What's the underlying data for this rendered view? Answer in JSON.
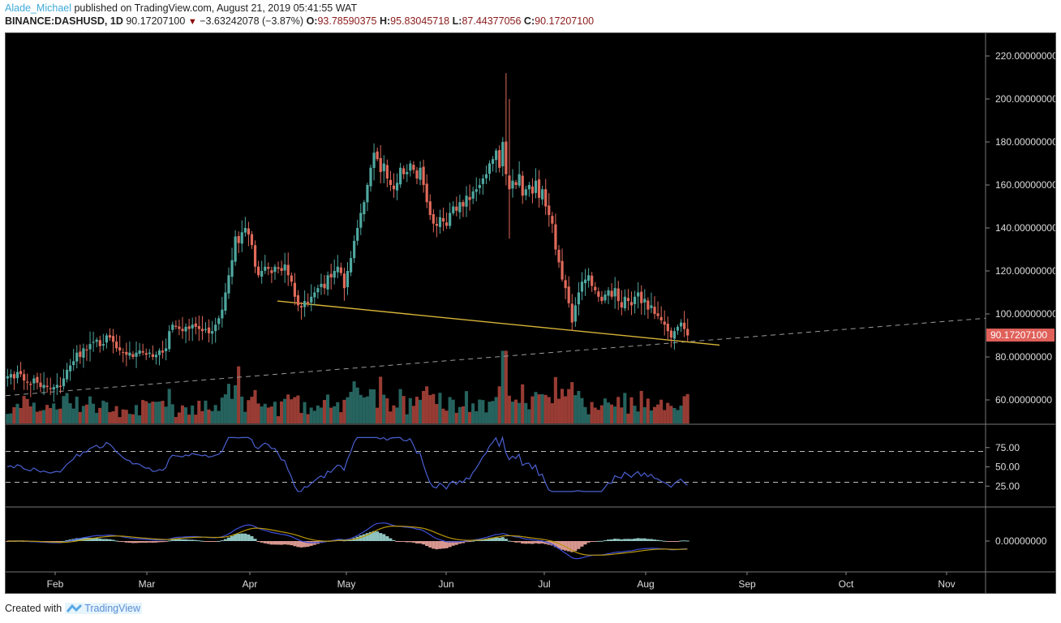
{
  "header": {
    "author": "Alade_Michael",
    "published_text": "published on TradingView.com, August 21, 2019 05:41:55 WAT",
    "symbol": "BINANCE:DASHUSD, 1D",
    "last": "90.17207100",
    "change": "−3.63242078 (−3.87%)",
    "o_label": "O:",
    "o": "93.78590375",
    "h_label": "H:",
    "h": "95.83045718",
    "l_label": "L:",
    "l": "87.44377056",
    "c_label": "C:",
    "c": "90.17207100"
  },
  "footer": {
    "created_with": "Created with",
    "brand": "TradingView"
  },
  "colors": {
    "background": "#000000",
    "up": "#4fa8a0",
    "down": "#e06a5a",
    "vol_up": "#2a6e68",
    "vol_down": "#a8423a",
    "rsi": "#4a5fd0",
    "macd": "#4050d8",
    "signal": "#b8960a",
    "trendline": "#d8b53a",
    "price_label_bg": "#e0605a",
    "axis_text": "#dddddd"
  },
  "chart_data": {
    "type": "candlestick",
    "title": "BINANCE:DASHUSD, 1D",
    "price_axis": {
      "ticks": [
        "220.00000000",
        "200.00000000",
        "180.00000000",
        "160.00000000",
        "140.00000000",
        "120.00000000",
        "100.00000000",
        "80.00000000",
        "60.00000000"
      ],
      "range": [
        54,
        228
      ]
    },
    "last_price_label": "90.17207100",
    "time_axis": {
      "ticks": [
        "Feb",
        "Mar",
        "Apr",
        "May",
        "Jun",
        "Jul",
        "Aug",
        "Sep",
        "Oct",
        "Nov"
      ]
    },
    "rsi": {
      "ticks": [
        "75.00",
        "50.00",
        "25.00"
      ],
      "bands": [
        70,
        30
      ]
    },
    "macd": {
      "ticks": [
        "0.00000000"
      ]
    },
    "close_series_approx": [
      71,
      72,
      70,
      73,
      72,
      69,
      68,
      67,
      70,
      68,
      66,
      67,
      66,
      65,
      66,
      67,
      66,
      70,
      74,
      76,
      78,
      82,
      80,
      84,
      83,
      86,
      87,
      88,
      85,
      86,
      90,
      89,
      87,
      84,
      83,
      82,
      81,
      82,
      80,
      82,
      83,
      82,
      81,
      82,
      80,
      81,
      83,
      82,
      84,
      92,
      95,
      94,
      93,
      92,
      94,
      93,
      95,
      94,
      93,
      92,
      93,
      91,
      92,
      95,
      98,
      102,
      110,
      118,
      125,
      136,
      133,
      138,
      140,
      137,
      132,
      122,
      118,
      120,
      122,
      121,
      119,
      122,
      121,
      120,
      123,
      118,
      115,
      108,
      104,
      103,
      106,
      105,
      108,
      110,
      112,
      114,
      112,
      118,
      117,
      120,
      122,
      119,
      112,
      120,
      126,
      134,
      140,
      147,
      152,
      160,
      168,
      175,
      172,
      166,
      170,
      163,
      160,
      158,
      161,
      168,
      165,
      166,
      170,
      167,
      163,
      168,
      160,
      152,
      146,
      142,
      141,
      145,
      143,
      141,
      147,
      150,
      148,
      152,
      150,
      155,
      153,
      157,
      158,
      160,
      163,
      165,
      170,
      172,
      176,
      168,
      180,
      165,
      158,
      162,
      160,
      165,
      155,
      158,
      160,
      156,
      162,
      154,
      158,
      150,
      146,
      142,
      130,
      124,
      116,
      112,
      105,
      96,
      104,
      110,
      115,
      116,
      118,
      113,
      111,
      108,
      106,
      109,
      111,
      108,
      112,
      106,
      103,
      108,
      106,
      104,
      108,
      110,
      105,
      107,
      102,
      104,
      100,
      99,
      97,
      95,
      92,
      89,
      92,
      94,
      96,
      93,
      90
    ],
    "volume_note": "volume histogram overlaid at bottom of price pane",
    "trendlines": [
      {
        "name": "descending support",
        "from": [
          "Apr 9",
          106
        ],
        "to": [
          "Aug 21",
          86
        ]
      },
      {
        "name": "ascending dashed",
        "from": [
          "Jan 17",
          62
        ],
        "to": [
          "Nov 30",
          98
        ]
      }
    ]
  }
}
